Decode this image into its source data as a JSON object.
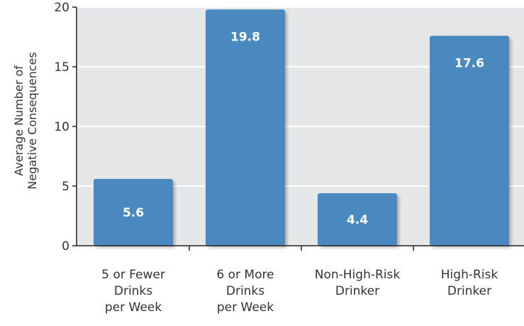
{
  "colors": {
    "plot_background": "#e6e7e8",
    "gridline": "#ffffff",
    "bar": "#4a89c0",
    "bar_shadow": "#2f6596",
    "axis": "#222222"
  },
  "chart_data": {
    "type": "bar",
    "categories": [
      [
        "5 or Fewer",
        "Drinks",
        "per Week"
      ],
      [
        "6 or More",
        "Drinks",
        "per Week"
      ],
      [
        "Non-High-Risk",
        "Drinker"
      ],
      [
        "High-Risk",
        "Drinker"
      ]
    ],
    "values": [
      5.6,
      19.8,
      4.4,
      17.6
    ],
    "data_labels": [
      "5.6",
      "19.8",
      "4.4",
      "17.6"
    ],
    "ylabel": [
      "Average Number of",
      "Negative Consequences"
    ],
    "ylim": [
      0,
      20
    ],
    "yticks": [
      0,
      5,
      10,
      15,
      20
    ],
    "ytick_labels": [
      "0",
      "5",
      "10",
      "15",
      "20"
    ],
    "grid": true,
    "legend": null
  }
}
